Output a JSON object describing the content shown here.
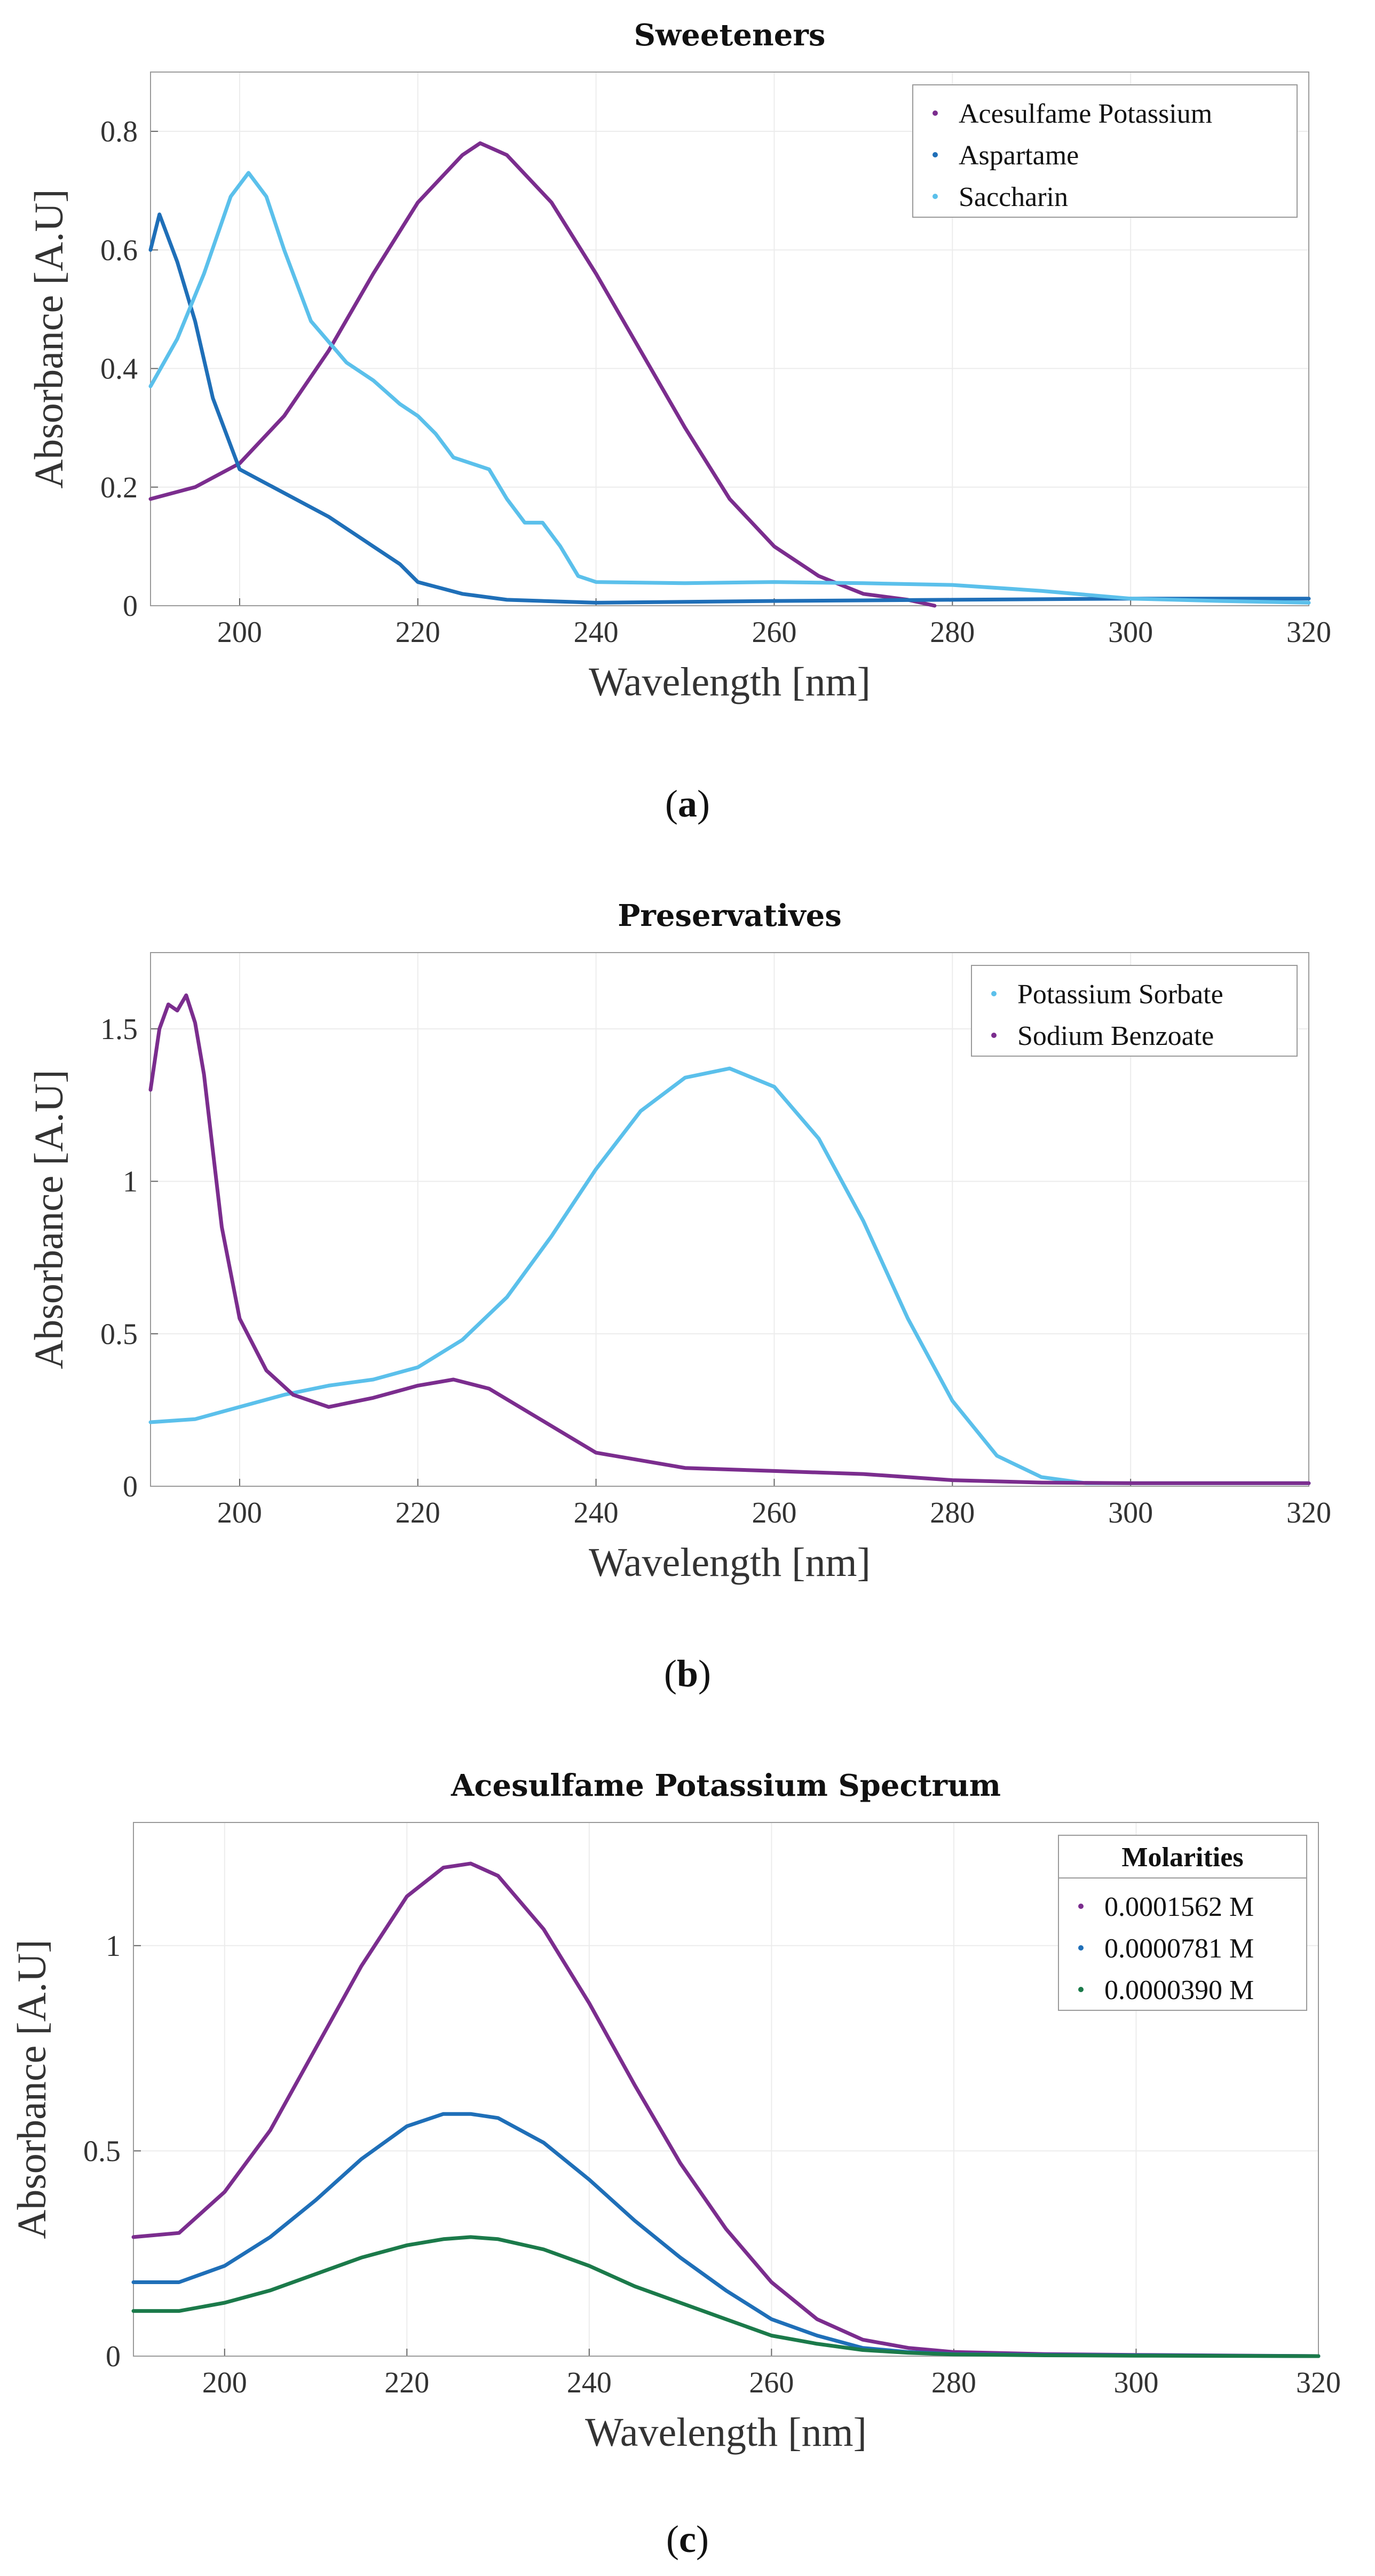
{
  "chart_data": [
    {
      "id": "a",
      "type": "line",
      "title": "Sweeteners",
      "xlabel": "Wavelength [nm]",
      "ylabel": "Absorbance [A.U]",
      "xlim": [
        190,
        320
      ],
      "ylim": [
        0,
        0.9
      ],
      "xticks": [
        200,
        220,
        240,
        260,
        280,
        300,
        320
      ],
      "yticks": [
        0,
        0.2,
        0.4,
        0.6,
        0.8
      ],
      "ytick_labels": [
        "0",
        "0.2",
        "0.4",
        "0.6",
        "0.8"
      ],
      "grid": true,
      "legend_position": "top-right",
      "caption": "a",
      "series": [
        {
          "name": "Acesulfame Potassium",
          "color": "#7b2d8e",
          "x": [
            190,
            195,
            200,
            205,
            210,
            215,
            220,
            225,
            227,
            230,
            235,
            240,
            245,
            250,
            255,
            260,
            265,
            270,
            275,
            278
          ],
          "y": [
            0.18,
            0.2,
            0.24,
            0.32,
            0.43,
            0.56,
            0.68,
            0.76,
            0.78,
            0.76,
            0.68,
            0.56,
            0.43,
            0.3,
            0.18,
            0.1,
            0.05,
            0.02,
            0.01,
            0.0
          ]
        },
        {
          "name": "Aspartame",
          "color": "#1f6fb8",
          "x": [
            190,
            191,
            193,
            195,
            197,
            200,
            205,
            210,
            215,
            218,
            220,
            225,
            230,
            240,
            260,
            280,
            300,
            320
          ],
          "y": [
            0.6,
            0.66,
            0.58,
            0.48,
            0.35,
            0.23,
            0.19,
            0.15,
            0.1,
            0.07,
            0.04,
            0.02,
            0.01,
            0.005,
            0.008,
            0.01,
            0.012,
            0.012
          ]
        },
        {
          "name": "Saccharin",
          "color": "#5bc0eb",
          "x": [
            190,
            193,
            196,
            199,
            201,
            203,
            205,
            208,
            212,
            215,
            218,
            220,
            222,
            224,
            226,
            228,
            230,
            232,
            234,
            236,
            238,
            240,
            250,
            260,
            270,
            280,
            290,
            300,
            310,
            320
          ],
          "y": [
            0.37,
            0.45,
            0.56,
            0.69,
            0.73,
            0.69,
            0.6,
            0.48,
            0.41,
            0.38,
            0.34,
            0.32,
            0.29,
            0.25,
            0.24,
            0.23,
            0.18,
            0.14,
            0.14,
            0.1,
            0.05,
            0.04,
            0.038,
            0.04,
            0.038,
            0.035,
            0.025,
            0.012,
            0.008,
            0.005
          ]
        }
      ]
    },
    {
      "id": "b",
      "type": "line",
      "title": "Preservatives",
      "xlabel": "Wavelength [nm]",
      "ylabel": "Absorbance [A.U]",
      "xlim": [
        190,
        320
      ],
      "ylim": [
        0,
        1.75
      ],
      "xticks": [
        200,
        220,
        240,
        260,
        280,
        300,
        320
      ],
      "yticks": [
        0,
        0.5,
        1,
        1.5
      ],
      "ytick_labels": [
        "0",
        "0.5",
        "1",
        "1.5"
      ],
      "grid": true,
      "legend_position": "top-right",
      "caption": "b",
      "series": [
        {
          "name": "Potassium Sorbate",
          "color": "#5bc0eb",
          "x": [
            190,
            195,
            200,
            205,
            210,
            215,
            220,
            225,
            230,
            235,
            240,
            245,
            250,
            255,
            260,
            265,
            270,
            275,
            280,
            285,
            290,
            295,
            300,
            310,
            320
          ],
          "y": [
            0.21,
            0.22,
            0.26,
            0.3,
            0.33,
            0.35,
            0.39,
            0.48,
            0.62,
            0.82,
            1.04,
            1.23,
            1.34,
            1.37,
            1.31,
            1.14,
            0.87,
            0.55,
            0.28,
            0.1,
            0.03,
            0.01,
            0.01,
            0.01,
            0.01
          ]
        },
        {
          "name": "Sodium Benzoate",
          "color": "#7b2d8e",
          "x": [
            190,
            191,
            192,
            193,
            194,
            195,
            196,
            197,
            198,
            200,
            203,
            206,
            210,
            215,
            220,
            224,
            228,
            232,
            236,
            240,
            250,
            260,
            270,
            280,
            290,
            300,
            320
          ],
          "y": [
            1.3,
            1.5,
            1.58,
            1.56,
            1.61,
            1.52,
            1.35,
            1.1,
            0.85,
            0.55,
            0.38,
            0.3,
            0.26,
            0.29,
            0.33,
            0.35,
            0.32,
            0.25,
            0.18,
            0.11,
            0.06,
            0.05,
            0.04,
            0.02,
            0.012,
            0.01,
            0.01
          ]
        }
      ]
    },
    {
      "id": "c",
      "type": "line",
      "title": "Acesulfame Potassium Spectrum",
      "xlabel": "Wavelength [nm]",
      "ylabel": "Absorbance [A.U]",
      "xlim": [
        190,
        320
      ],
      "ylim": [
        0,
        1.3
      ],
      "xticks": [
        200,
        220,
        240,
        260,
        280,
        300,
        320
      ],
      "yticks": [
        0,
        0.5,
        1
      ],
      "ytick_labels": [
        "0",
        "0.5",
        "1"
      ],
      "grid": true,
      "legend_position": "top-right",
      "legend_title": "Molarities",
      "caption": "c",
      "series": [
        {
          "name": "0.0001562 M",
          "color": "#7b2d8e",
          "x": [
            190,
            195,
            200,
            205,
            210,
            215,
            220,
            224,
            227,
            230,
            235,
            240,
            245,
            250,
            255,
            260,
            265,
            270,
            275,
            280,
            290,
            300,
            320
          ],
          "y": [
            0.29,
            0.3,
            0.4,
            0.55,
            0.75,
            0.95,
            1.12,
            1.19,
            1.2,
            1.17,
            1.04,
            0.86,
            0.66,
            0.47,
            0.31,
            0.18,
            0.09,
            0.04,
            0.02,
            0.01,
            0.005,
            0.003,
            0.0
          ]
        },
        {
          "name": "0.0000781 M",
          "color": "#1f6fb8",
          "x": [
            190,
            195,
            200,
            205,
            210,
            215,
            220,
            224,
            227,
            230,
            235,
            240,
            245,
            250,
            255,
            260,
            265,
            270,
            275,
            280,
            290,
            300,
            320
          ],
          "y": [
            0.18,
            0.18,
            0.22,
            0.29,
            0.38,
            0.48,
            0.56,
            0.59,
            0.59,
            0.58,
            0.52,
            0.43,
            0.33,
            0.24,
            0.16,
            0.09,
            0.05,
            0.02,
            0.01,
            0.005,
            0.003,
            0.002,
            0.0
          ]
        },
        {
          "name": "0.0000390 M",
          "color": "#1b7a4a",
          "x": [
            190,
            195,
            200,
            205,
            210,
            215,
            220,
            224,
            227,
            230,
            235,
            240,
            245,
            250,
            255,
            260,
            265,
            270,
            275,
            280,
            290,
            300,
            320
          ],
          "y": [
            0.11,
            0.11,
            0.13,
            0.16,
            0.2,
            0.24,
            0.27,
            0.285,
            0.29,
            0.285,
            0.26,
            0.22,
            0.17,
            0.13,
            0.09,
            0.05,
            0.03,
            0.015,
            0.008,
            0.004,
            0.002,
            0.001,
            0.0
          ]
        }
      ]
    }
  ]
}
